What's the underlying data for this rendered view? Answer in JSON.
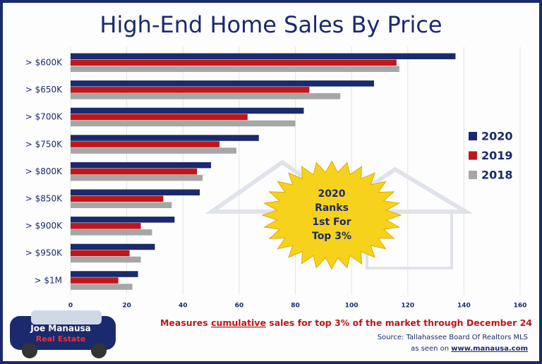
{
  "chart_data": {
    "type": "bar",
    "orientation": "horizontal",
    "title": "High-End Home Sales By Price",
    "categories": [
      "> $600K",
      "> $650K",
      "> $700K",
      "> $750K",
      "> $800K",
      "> $850K",
      "> $900K",
      "> $950K",
      "> $1M"
    ],
    "series": [
      {
        "name": "2020",
        "color": "#1a2a6c",
        "values": [
          137,
          108,
          83,
          67,
          50,
          46,
          37,
          30,
          24
        ]
      },
      {
        "name": "2019",
        "color": "#c0161b",
        "values": [
          116,
          85,
          63,
          53,
          45,
          33,
          25,
          21,
          17
        ]
      },
      {
        "name": "2018",
        "color": "#a6a6a6",
        "values": [
          117,
          96,
          80,
          59,
          47,
          36,
          29,
          25,
          22
        ]
      }
    ],
    "xlim": [
      0,
      160
    ],
    "xticks": [
      0,
      20,
      40,
      60,
      80,
      100,
      120,
      140,
      160
    ],
    "grid": true,
    "legend": "right",
    "badge": [
      "2020",
      "Ranks",
      "1st For",
      "Top 3%"
    ],
    "annotation": {
      "before": "Measures ",
      "emphasis": "cumulative",
      "after": " sales for top 3% of the market through December 24"
    },
    "source": "Source: Tallahassee Board Of Realtors MLS",
    "credit": {
      "prefix": "as seen on ",
      "link": "www.manausa.com"
    }
  },
  "logo": {
    "name": "Joe Manausa",
    "subtitle": "Real Estate"
  }
}
